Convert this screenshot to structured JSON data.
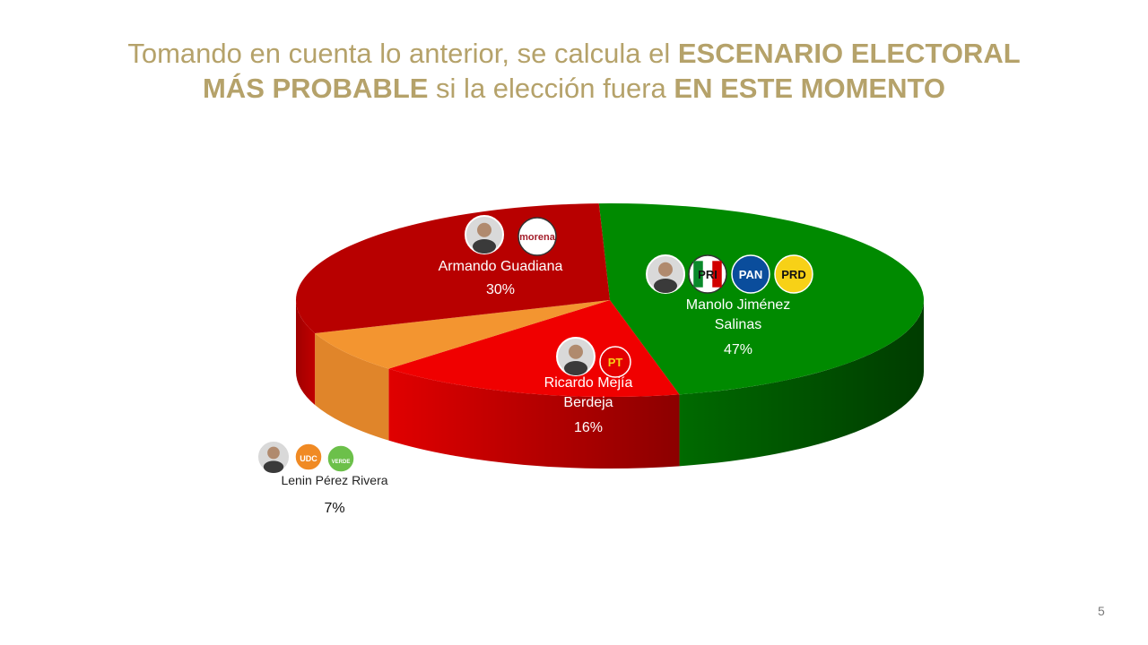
{
  "title": {
    "line1_plain": "Tomando en cuenta lo anterior, se calcula el ",
    "line1_bold": "ESCENARIO ELECTORAL",
    "line2_bold_a": "MÁS PROBABLE",
    "line2_plain": " si la elección fuera ",
    "line2_bold_b": "EN ESTE MOMENTO"
  },
  "slide_number": "5",
  "chart_data": {
    "type": "pie",
    "style": "3d",
    "series": [
      {
        "label_lines": [
          "Manolo Jiménez",
          "Salinas"
        ],
        "value": 47,
        "value_label": "47%",
        "color": "#008a00",
        "side_color": "#005500",
        "party_logos": [
          "PRI",
          "PAN",
          "PRD"
        ]
      },
      {
        "label_lines": [
          "Ricardo Mejía",
          "Berdeja"
        ],
        "value": 16,
        "value_label": "16%",
        "color": "#f00000",
        "side_color": "#b80000",
        "party_logos": [
          "PT"
        ]
      },
      {
        "label_lines": [
          "Lenin Pérez Rivera"
        ],
        "value": 7,
        "value_label": "7%",
        "color": "#f39530",
        "side_color": "#e0852a",
        "party_logos": [
          "UDC",
          "VERDE"
        ]
      },
      {
        "label_lines": [
          "Armando Guadiana"
        ],
        "value": 30,
        "value_label": "30%",
        "color": "#b80000",
        "side_color": "#8c0000",
        "party_logos": [
          "morena"
        ]
      }
    ],
    "logos": {
      "PRI": {
        "text": "PRI",
        "bg": "#ffffff",
        "fg": "#d10000"
      },
      "PAN": {
        "text": "PAN",
        "bg": "#0a4d9c",
        "fg": "#ffffff"
      },
      "PRD": {
        "text": "PRD",
        "bg": "#f7d117",
        "fg": "#111111"
      },
      "PT": {
        "text": "PT",
        "bg": "#e30000",
        "fg": "#f7d117"
      },
      "UDC": {
        "text": "UDC",
        "bg": "#f08a24",
        "fg": "#ffffff"
      },
      "VERDE": {
        "text": "VERDE",
        "bg": "#6cc04a",
        "fg": "#ffffff"
      },
      "morena": {
        "text": "morena",
        "bg": "#ffffff",
        "fg": "#a31d2a"
      }
    }
  }
}
